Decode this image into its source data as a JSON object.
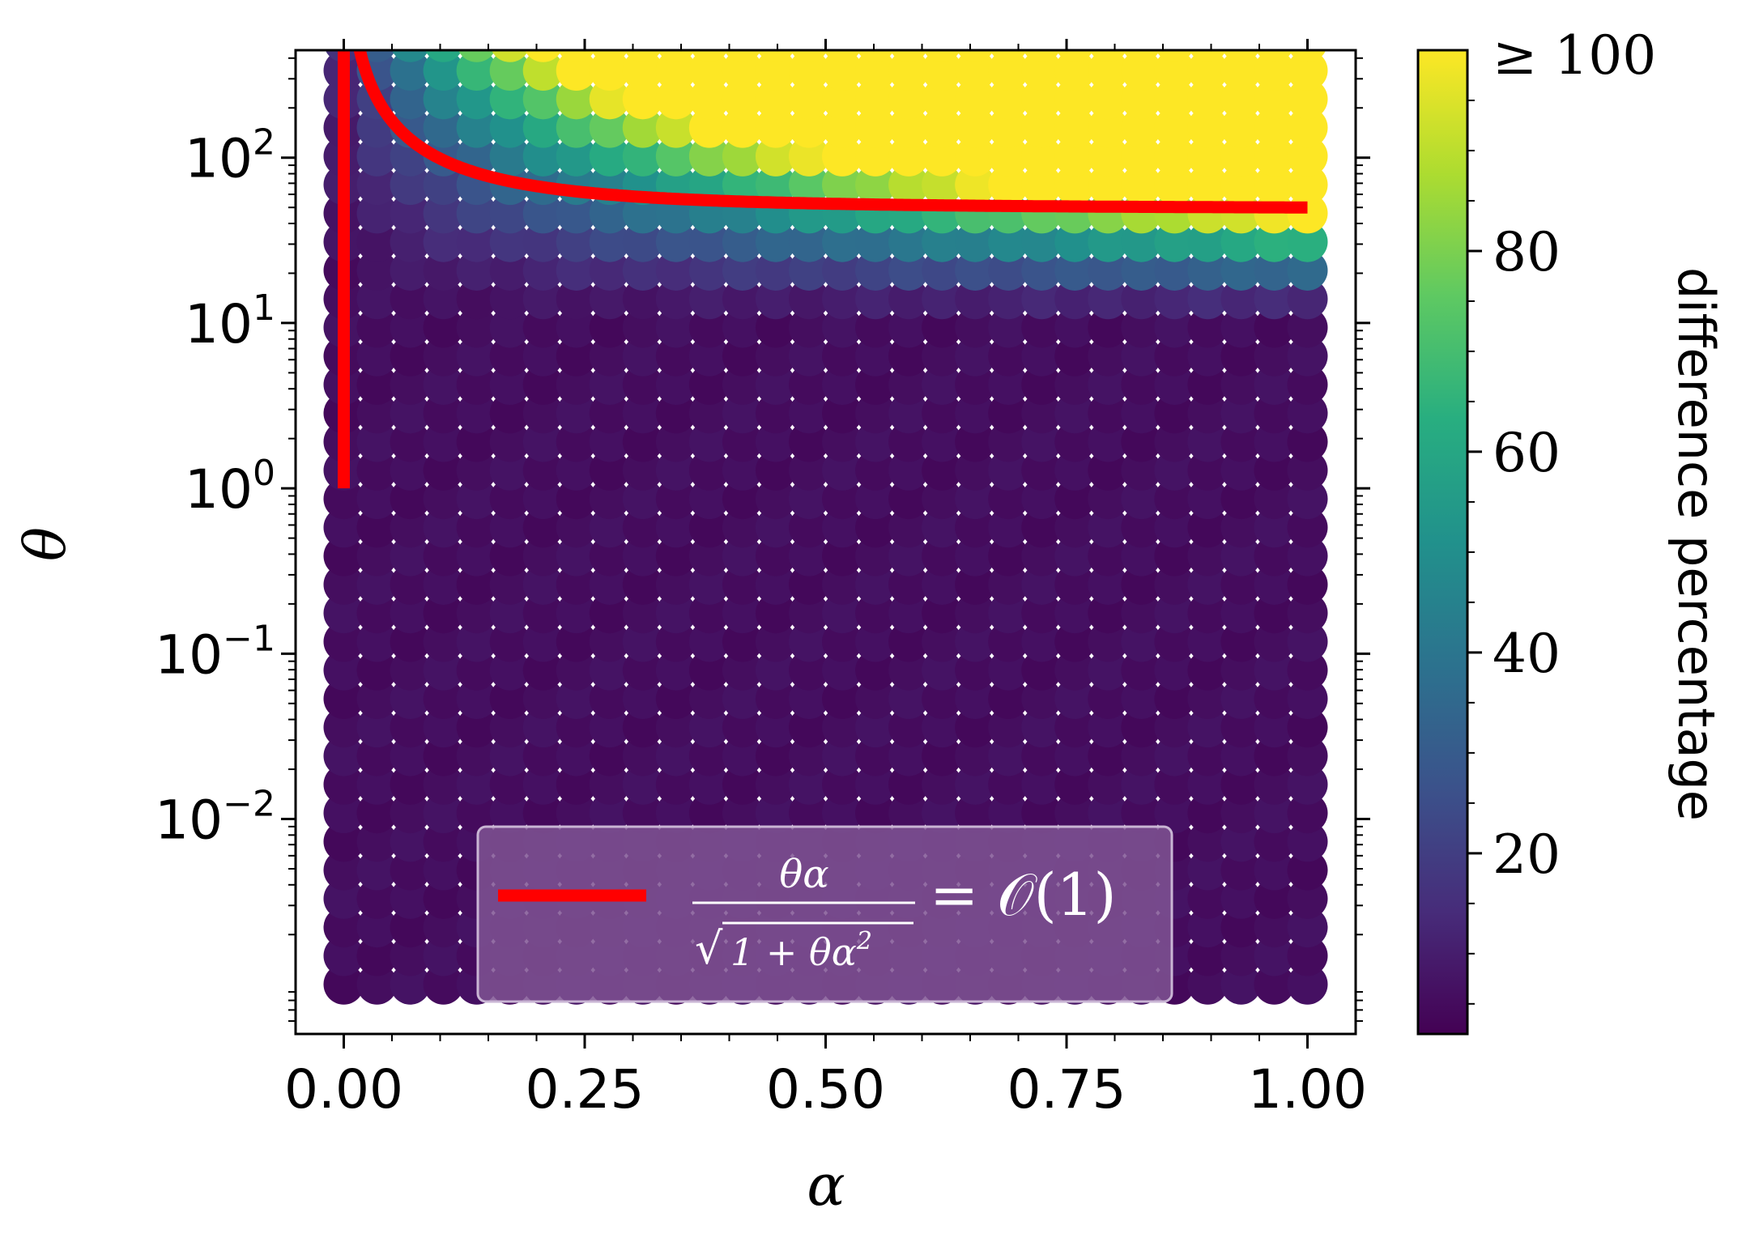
{
  "chart_data": {
    "type": "scatter",
    "title": "",
    "xlabel": "α",
    "ylabel": "θ",
    "xlim": [
      -0.05,
      1.05
    ],
    "ylim_log10": [
      -3.3,
      2.65
    ],
    "x_scale": "linear",
    "y_scale": "log",
    "x_ticks": [
      0.0,
      0.25,
      0.5,
      0.75,
      1.0
    ],
    "x_tick_labels": [
      "0.00",
      "0.25",
      "0.50",
      "0.75",
      "1.00"
    ],
    "y_ticks_log10": [
      -2,
      -1,
      0,
      1,
      2
    ],
    "y_tick_bases": [
      "10",
      "10",
      "10",
      "10",
      "10"
    ],
    "y_tick_exponents": [
      "−2",
      "−1",
      "0",
      "1",
      "2"
    ],
    "grid": {
      "alpha_start": 0.0,
      "alpha_end": 1.0,
      "alpha_count": 30,
      "theta_log10_start": -3.0,
      "theta_log10_end": 2.7,
      "theta_count": 34
    },
    "colormap": "viridis",
    "color_range": [
      2,
      100
    ],
    "colorbar": {
      "label": "difference percentage",
      "ticks": [
        20,
        40,
        60,
        80
      ],
      "tick_labels": [
        "20",
        "40",
        "60",
        "80"
      ],
      "top_label": "≥ 100"
    },
    "curve": {
      "label_numerator": "θα",
      "label_denominator_radical": "√",
      "label_denominator": "1 + θα",
      "label_denominator_exponent": "2",
      "label_rhs": "= 𝒪(1)",
      "color": "#ff0000",
      "alpha_range": [
        0.0,
        1.0
      ],
      "theta_range": [
        1,
        500
      ],
      "equation": "θα / sqrt(1 + θα²) = 7"
    },
    "legend_position": "lower center",
    "legend_background": "#7f5493"
  }
}
